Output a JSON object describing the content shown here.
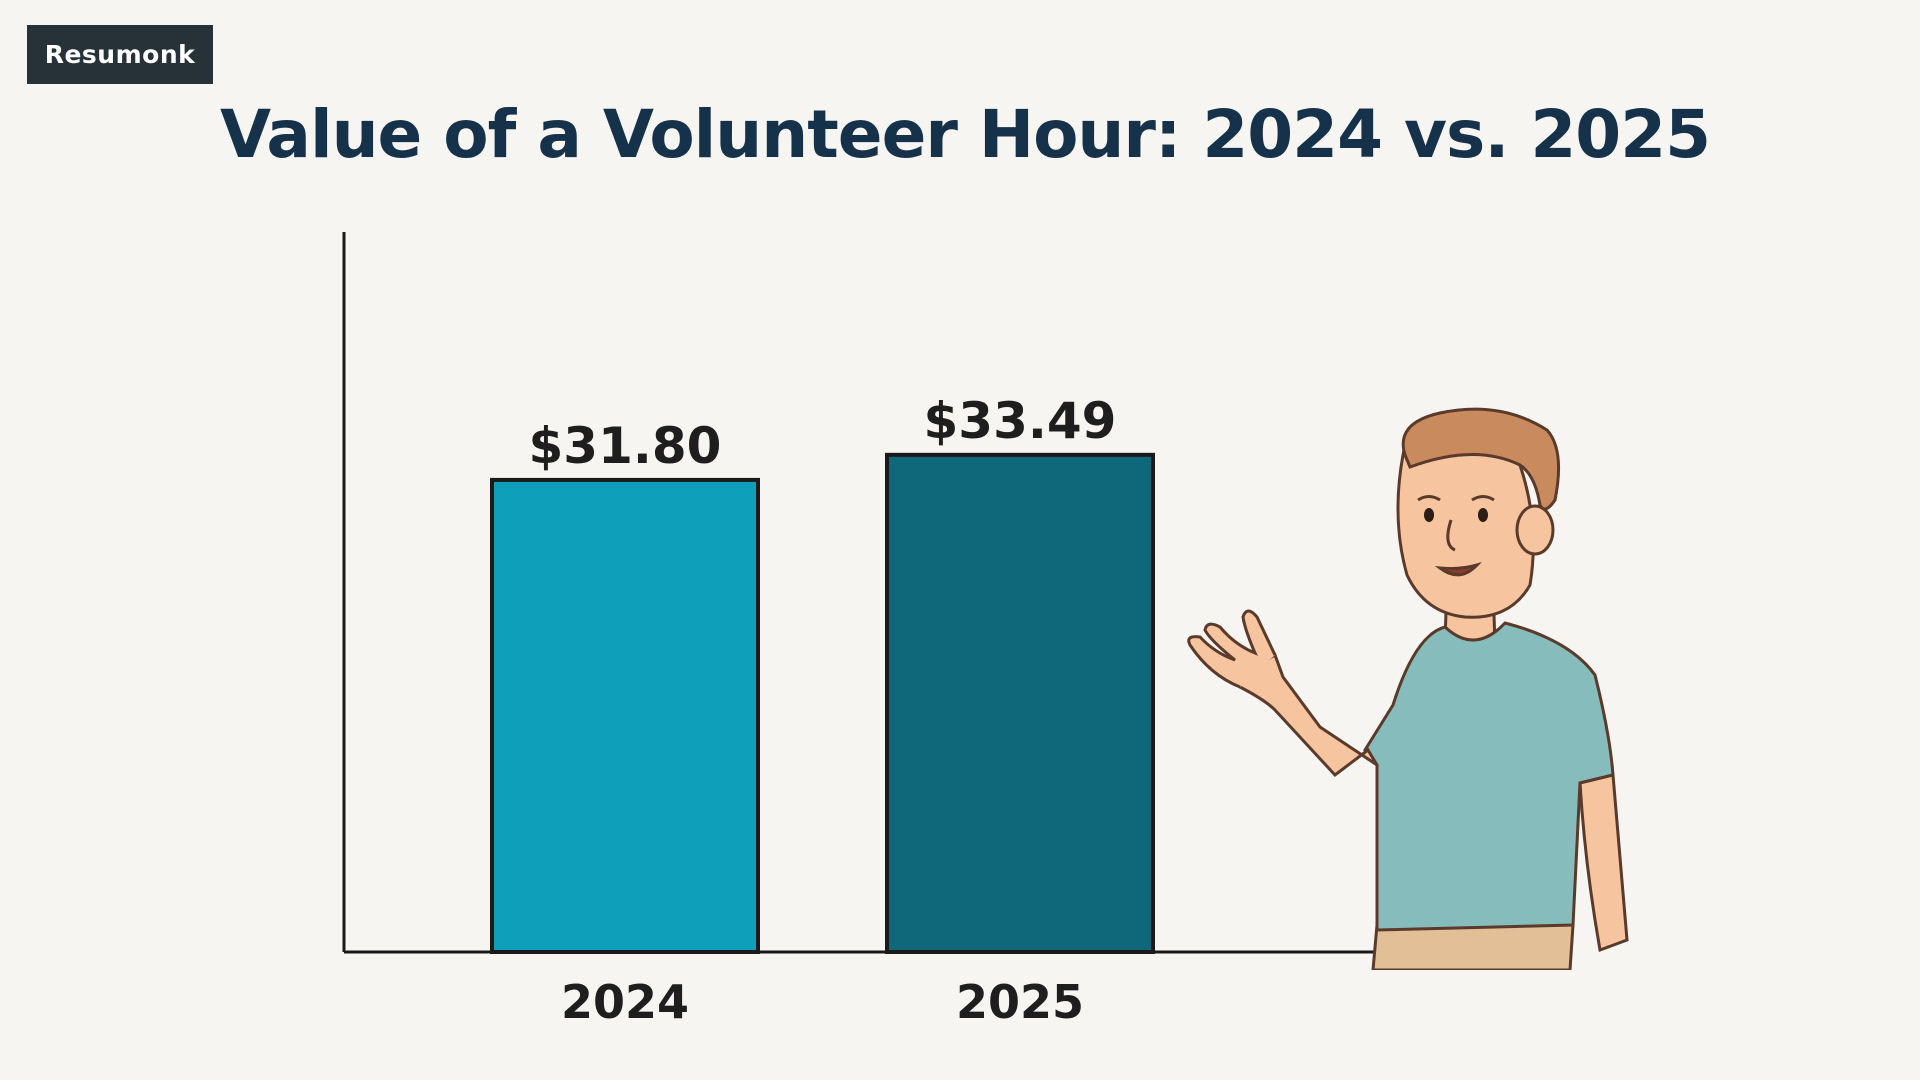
{
  "brand": {
    "logo_text": "Resumonk"
  },
  "chart_data": {
    "type": "bar",
    "title": "Value of a Volunteer Hour: 2024 vs. 2025",
    "categories": [
      "2024",
      "2025"
    ],
    "values": [
      31.8,
      33.49
    ],
    "value_labels": [
      "$31.80",
      "$33.49"
    ],
    "colors": [
      "#0e9fba",
      "#0e6879"
    ],
    "ylim": [
      0,
      48.5
    ],
    "grid": false,
    "legend": "none",
    "xlabel": "",
    "ylabel": ""
  },
  "illustration": {
    "icon": "presenter-person-icon"
  }
}
